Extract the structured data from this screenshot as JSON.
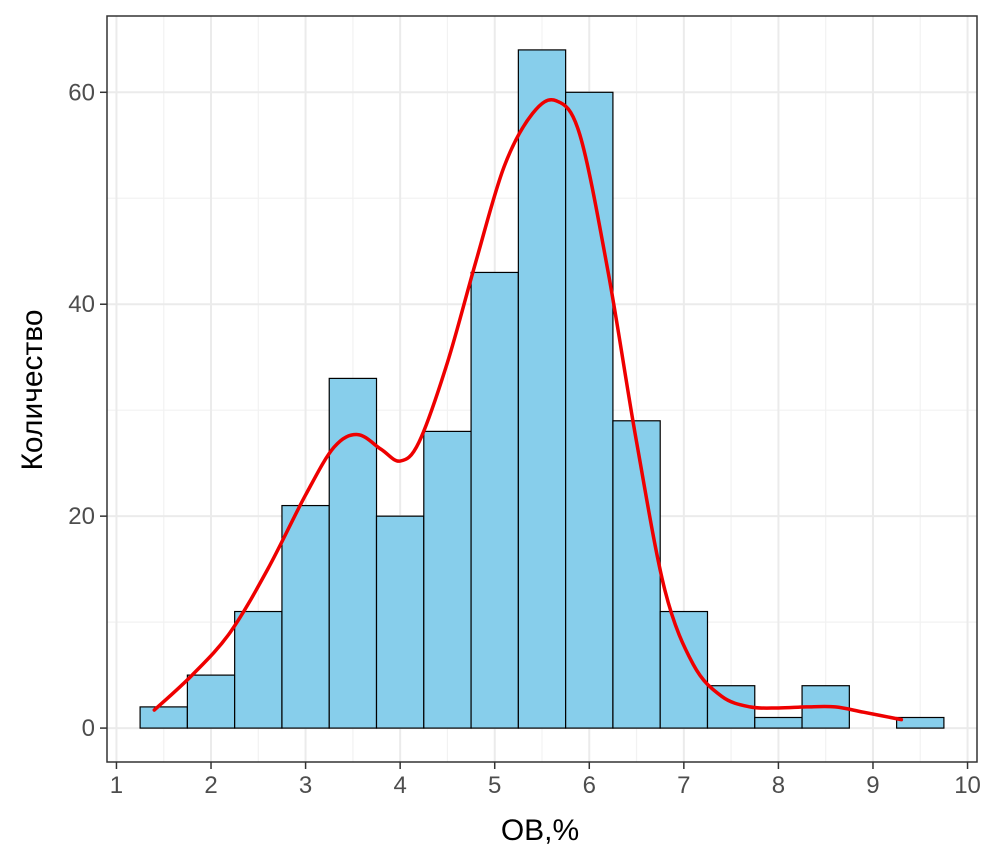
{
  "chart_data": {
    "type": "bar",
    "subtype": "histogram-with-density",
    "title": "",
    "xlabel": "ОВ,%",
    "ylabel": "Количество",
    "xlim": [
      0.9,
      10.1
    ],
    "ylim": [
      -3.2,
      67.2
    ],
    "x_ticks": [
      "1",
      "2",
      "3",
      "4",
      "5",
      "6",
      "7",
      "8",
      "9",
      "10"
    ],
    "y_ticks": [
      "0",
      "20",
      "40",
      "60"
    ],
    "bin_width": 0.5,
    "bins": [
      {
        "start": 1.25,
        "end": 1.75,
        "count": 2
      },
      {
        "start": 1.75,
        "end": 2.25,
        "count": 5
      },
      {
        "start": 2.25,
        "end": 2.75,
        "count": 11
      },
      {
        "start": 2.75,
        "end": 3.25,
        "count": 21
      },
      {
        "start": 3.25,
        "end": 3.75,
        "count": 33
      },
      {
        "start": 3.75,
        "end": 4.25,
        "count": 20
      },
      {
        "start": 4.25,
        "end": 4.75,
        "count": 28
      },
      {
        "start": 4.75,
        "end": 5.25,
        "count": 43
      },
      {
        "start": 5.25,
        "end": 5.75,
        "count": 64
      },
      {
        "start": 5.75,
        "end": 6.25,
        "count": 60
      },
      {
        "start": 6.25,
        "end": 6.75,
        "count": 29
      },
      {
        "start": 6.75,
        "end": 7.25,
        "count": 11
      },
      {
        "start": 7.25,
        "end": 7.75,
        "count": 4
      },
      {
        "start": 7.75,
        "end": 8.25,
        "count": 1
      },
      {
        "start": 8.25,
        "end": 8.75,
        "count": 4
      },
      {
        "start": 8.75,
        "end": 9.25,
        "count": 0
      },
      {
        "start": 9.25,
        "end": 9.75,
        "count": 1
      }
    ],
    "density_curve": {
      "name": "density",
      "x": [
        1.4,
        1.8,
        2.2,
        2.6,
        3.0,
        3.3,
        3.55,
        3.8,
        4.0,
        4.2,
        4.5,
        4.8,
        5.1,
        5.4,
        5.65,
        5.9,
        6.2,
        6.5,
        6.8,
        7.1,
        7.4,
        7.7,
        8.0,
        8.3,
        8.6,
        8.9,
        9.3
      ],
      "y": [
        1.7,
        5.0,
        9.0,
        15.0,
        22.0,
        26.5,
        27.7,
        26.3,
        25.2,
        27.0,
        34.5,
        44.0,
        53.0,
        58.0,
        59.2,
        56.0,
        43.0,
        27.0,
        13.0,
        6.0,
        3.0,
        2.0,
        1.9,
        2.0,
        2.0,
        1.5,
        0.8
      ]
    },
    "colors": {
      "bar_fill": "#87ceeb",
      "bar_stroke": "#000000",
      "density_line": "#ee0000",
      "grid_major": "#ebebeb",
      "grid_minor": "#f2f2f2",
      "panel_border": "#333333",
      "tick_text": "#4d4d4d"
    },
    "grid": true,
    "legend": "none"
  }
}
